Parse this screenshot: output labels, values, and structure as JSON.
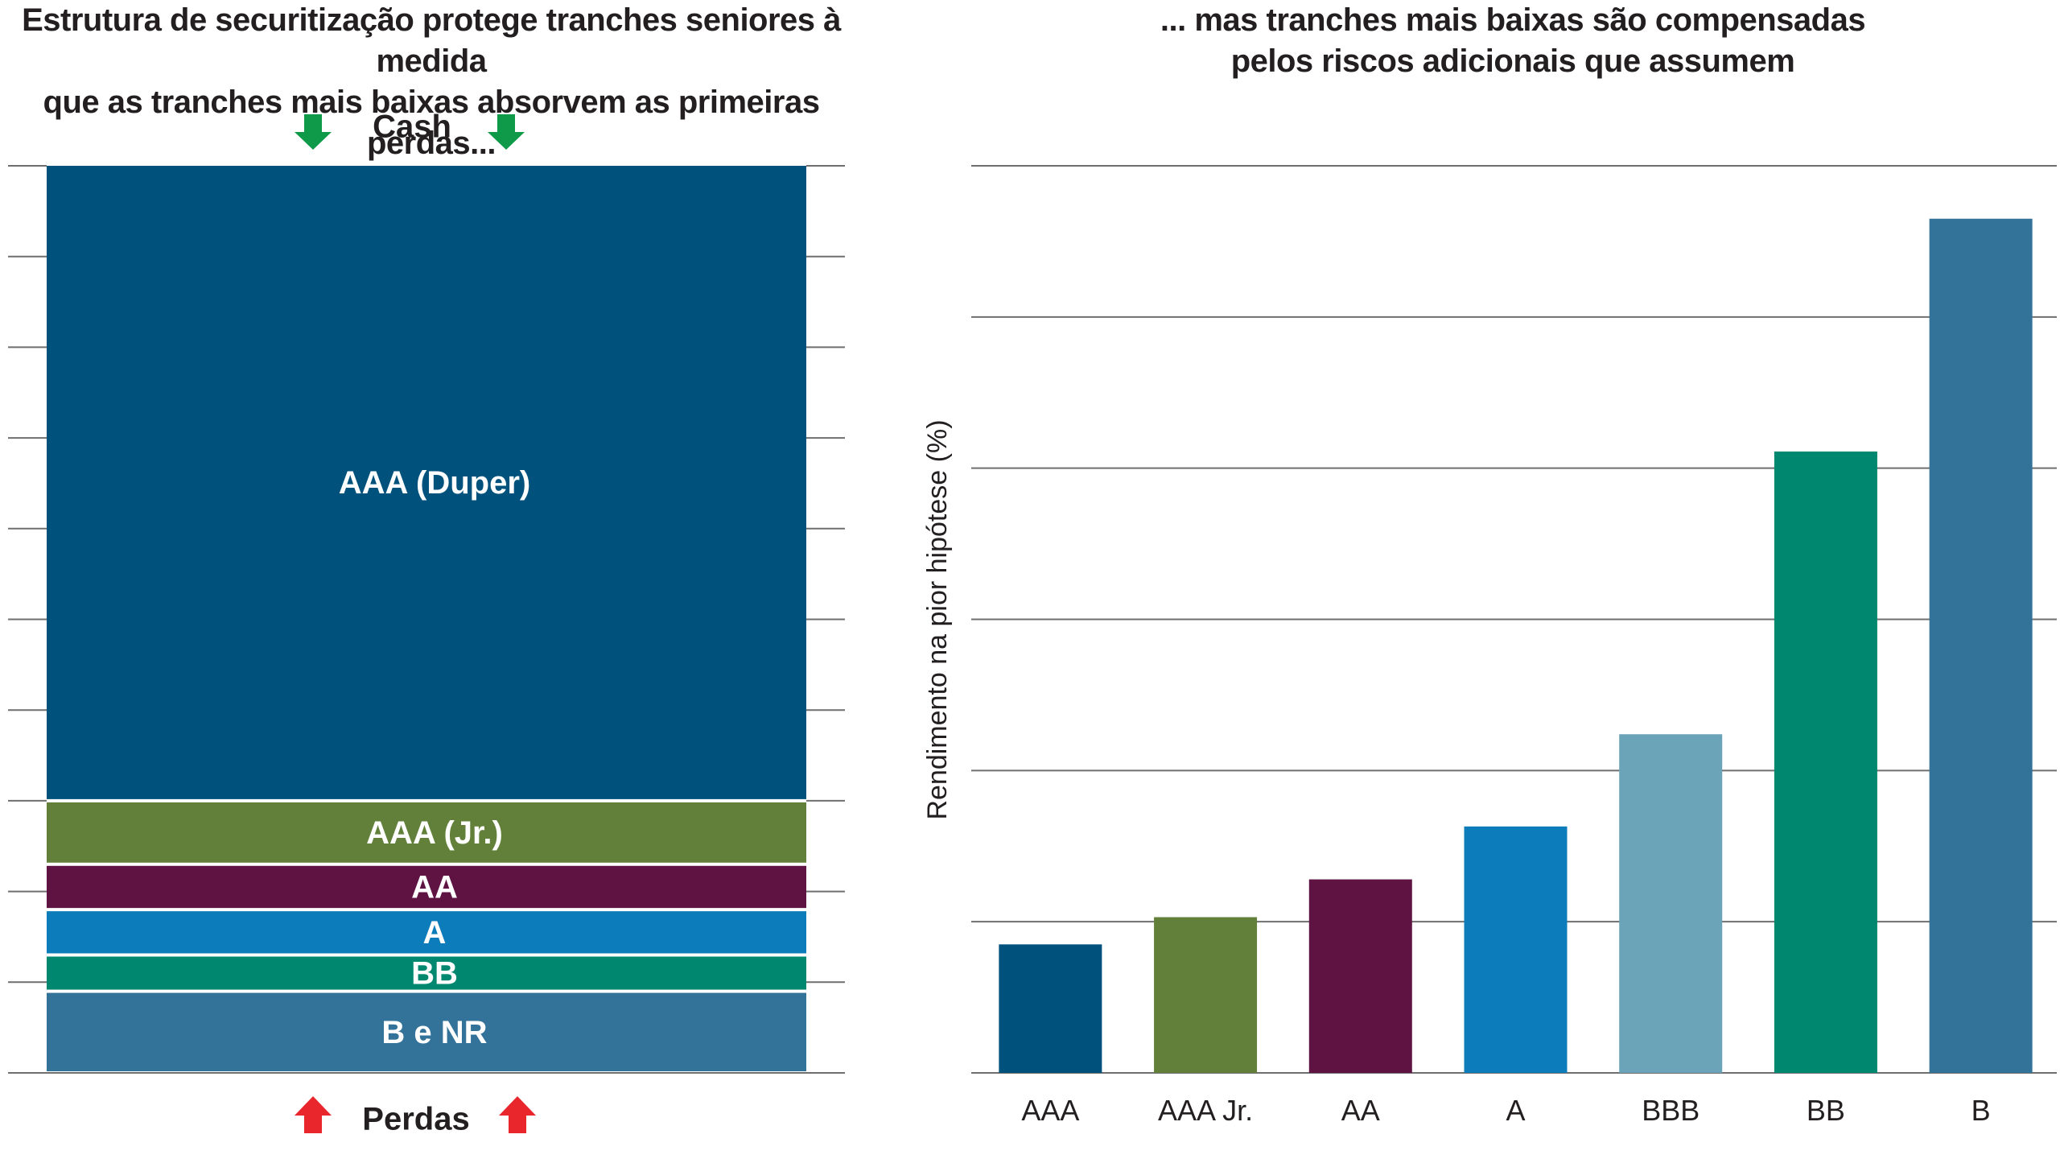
{
  "left_panel": {
    "title": "Estrutura de securitização protege tranches seniores à medida\nque as tranches mais baixas absorvem as primeiras perdas...",
    "top_flow_label": "Cash",
    "bottom_flow_label": "Perdas",
    "inflow_arrow_color": "#0e9a48",
    "loss_arrow_color": "#e8262b"
  },
  "right_panel": {
    "title": "... mas tranches mais baixas são compensadas\npelos riscos adicionais que assumem"
  },
  "chart_data": [
    {
      "type": "bar",
      "orientation": "stacked-vertical",
      "categories": [
        "AAA (Duper)",
        "AAA (Jr.)",
        "AA",
        "A",
        "BB",
        "B e NR"
      ],
      "values": [
        70,
        7,
        5,
        5,
        4,
        9
      ],
      "colors": [
        "#00527c",
        "#63803a",
        "#5f1342",
        "#0c7cba",
        "#00876f",
        "#337299"
      ],
      "ylim": [
        0,
        100
      ],
      "grid": false
    },
    {
      "type": "bar",
      "categories": [
        "AAA",
        "AAA Jr.",
        "AA",
        "A",
        "BBB",
        "BB",
        "B"
      ],
      "values": [
        0.85,
        1.03,
        1.28,
        1.63,
        2.24,
        4.11,
        5.65
      ],
      "colors": [
        "#00527c",
        "#63803a",
        "#5f1342",
        "#0c7cba",
        "#6ba3b8",
        "#00876f",
        "#337299"
      ],
      "ylabel": "Rendimento na pior hipótese (%)",
      "ylim": [
        0,
        6
      ],
      "grid": true
    }
  ]
}
